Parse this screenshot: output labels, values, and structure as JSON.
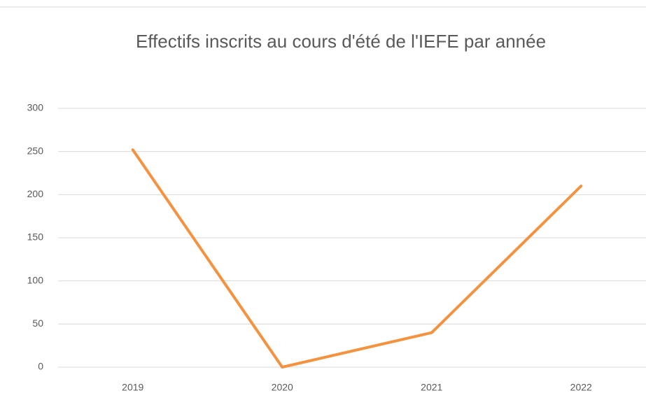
{
  "chart_data": {
    "type": "line",
    "title": "Effectifs inscrits au cours d'été de l'IEFE par année",
    "categories": [
      "2019",
      "2020",
      "2021",
      "2022"
    ],
    "series": [
      {
        "name": null,
        "color": "#f4923f",
        "values": [
          252,
          0,
          40,
          210
        ]
      }
    ],
    "ylim": [
      0,
      300
    ],
    "yticks": [
      0,
      50,
      100,
      150,
      200,
      250,
      300
    ],
    "grid": true
  }
}
